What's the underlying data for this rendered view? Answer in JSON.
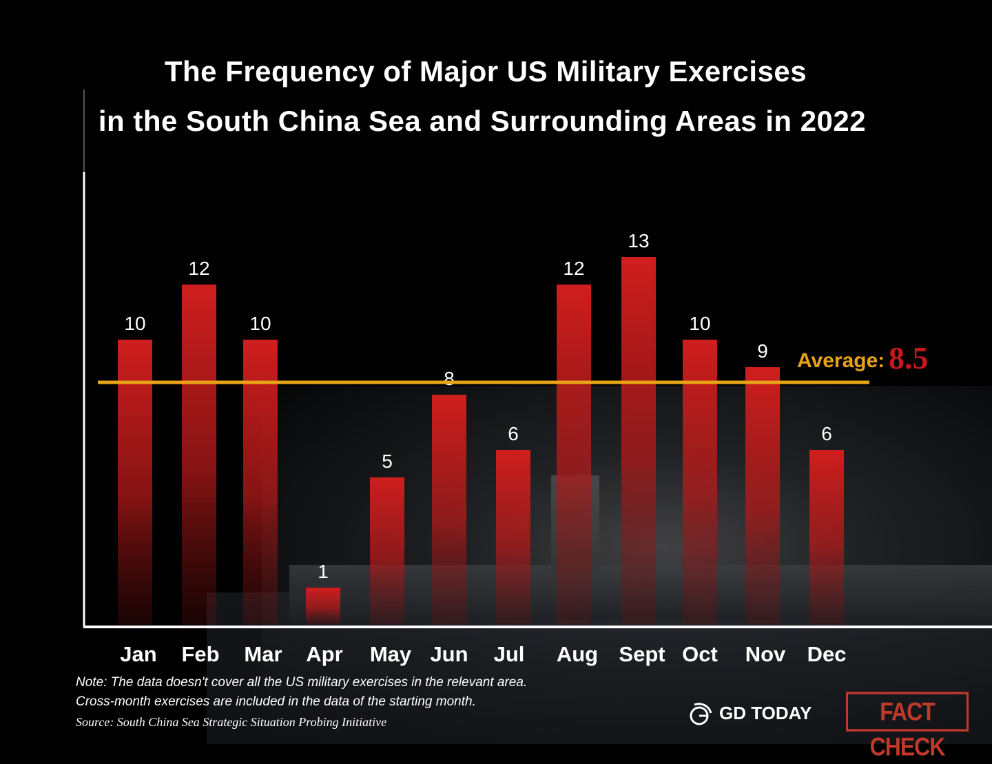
{
  "chart_data": {
    "type": "bar",
    "title": "The Frequency of Major US Military Exercises in the South China Sea and Surrounding Areas in 2022",
    "title_lines": [
      "The Frequency of Major US Military Exercises",
      "in the South China Sea and Surrounding Areas in 2022"
    ],
    "categories": [
      "Jan",
      "Feb",
      "Mar",
      "Apr",
      "May",
      "Jun",
      "Jul",
      "Aug",
      "Sept",
      "Oct",
      "Nov",
      "Dec"
    ],
    "values": [
      10,
      12,
      10,
      1,
      5,
      8,
      6,
      12,
      13,
      10,
      9,
      6
    ],
    "xlabel": "",
    "ylabel": "",
    "ylim": [
      0,
      13
    ],
    "grid": false,
    "average": {
      "label": "Average:",
      "value": 8.5,
      "value_text": "8.5"
    },
    "bar_color": "#cc1f1f",
    "average_line_color": "#e8a317",
    "average_value_color": "#c8171d"
  },
  "notes": {
    "line1": "Note: The data doesn't cover all the US military exercises in the relevant area.",
    "line2": "Cross-month exercises are included in the data of the starting month.",
    "source": "Source: South China Sea Strategic Situation Probing Initiative"
  },
  "branding": {
    "logo_text": "GD TODAY",
    "stamp_text": "FACT CHECK"
  }
}
